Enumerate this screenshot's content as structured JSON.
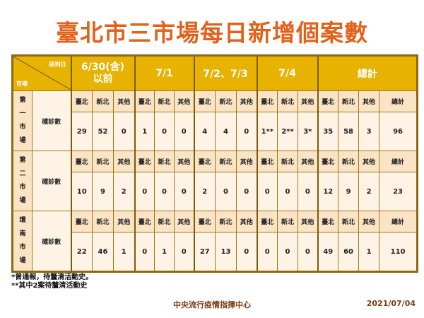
{
  "title": "臺北市三市場每日新增個案數",
  "header": {
    "corner_top": "研判日",
    "corner_bottom": "市場",
    "groups": [
      "6/30(含)\n以前",
      "7/1",
      "7/2、7/3",
      "7/4",
      "總計"
    ]
  },
  "sublabels": [
    "臺北",
    "新北",
    "其他",
    "臺北",
    "新北",
    "其他",
    "臺北",
    "新北",
    "其他",
    "臺北",
    "新北",
    "其他",
    "臺北",
    "新北",
    "其他",
    "總計"
  ],
  "row_label": "確診數",
  "markets": [
    {
      "name": "第一市場",
      "values": [
        "29",
        "52",
        "0",
        "1",
        "0",
        "0",
        "4",
        "4",
        "0",
        "1**",
        "2**",
        "3*",
        "35",
        "58",
        "3",
        "96"
      ]
    },
    {
      "name": "第二市場",
      "values": [
        "10",
        "9",
        "2",
        "0",
        "0",
        "0",
        "2",
        "0",
        "0",
        "0",
        "0",
        "0",
        "12",
        "9",
        "2",
        "23"
      ]
    },
    {
      "name": "環南市場",
      "values": [
        "22",
        "46",
        "1",
        "0",
        "1",
        "0",
        "27",
        "13",
        "0",
        "0",
        "0",
        "0",
        "49",
        "60",
        "1",
        "110"
      ]
    }
  ],
  "notes": [
    "*曾通報，待釐清活動史。",
    "**其中2案待釐清活動史"
  ],
  "agency": "中央流行疫情指揮中心",
  "date": "2021/07/04"
}
